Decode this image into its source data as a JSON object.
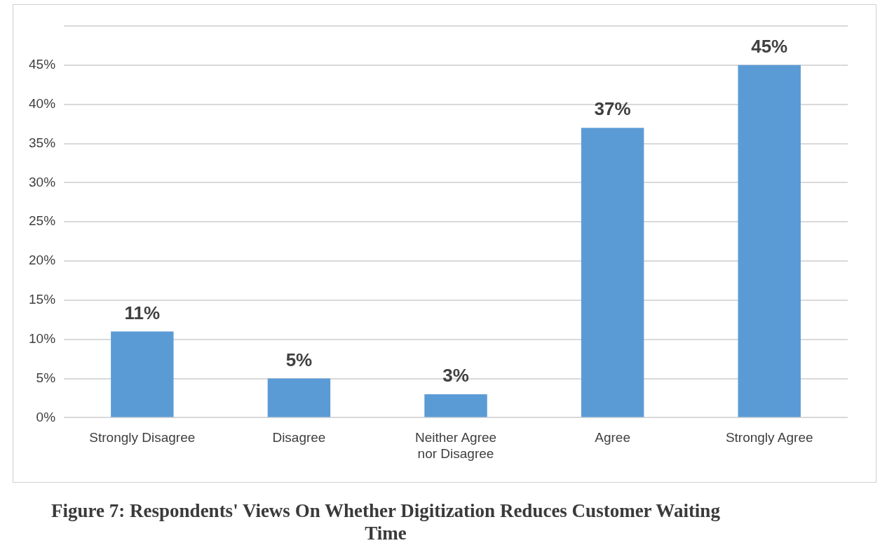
{
  "chart_data": {
    "type": "bar",
    "categories": [
      "Strongly Disagree",
      "Disagree",
      "Neither Agree nor Disagree",
      "Agree",
      "Strongly Agree"
    ],
    "values": [
      11,
      5,
      3,
      37,
      45
    ],
    "value_labels": [
      "11%",
      "5%",
      "3%",
      "37%",
      "45%"
    ],
    "color": "#5b9bd5",
    "ylim": [
      0,
      50
    ],
    "yticks": [
      {
        "value": 0,
        "label": "0%"
      },
      {
        "value": 5,
        "label": "5%"
      },
      {
        "value": 10,
        "label": "10%"
      },
      {
        "value": 15,
        "label": "15%"
      },
      {
        "value": 20,
        "label": "20%"
      },
      {
        "value": 25,
        "label": "25%"
      },
      {
        "value": 30,
        "label": "30%"
      },
      {
        "value": 35,
        "label": "35%"
      },
      {
        "value": 40,
        "label": "40%"
      },
      {
        "value": 45,
        "label": "45%"
      },
      {
        "value": 50,
        "label": null
      }
    ],
    "grid": "y",
    "annotations": [
      "Figure 7: Respondents' Views On Whether Digitization Reduces Customer Waiting Time"
    ]
  }
}
